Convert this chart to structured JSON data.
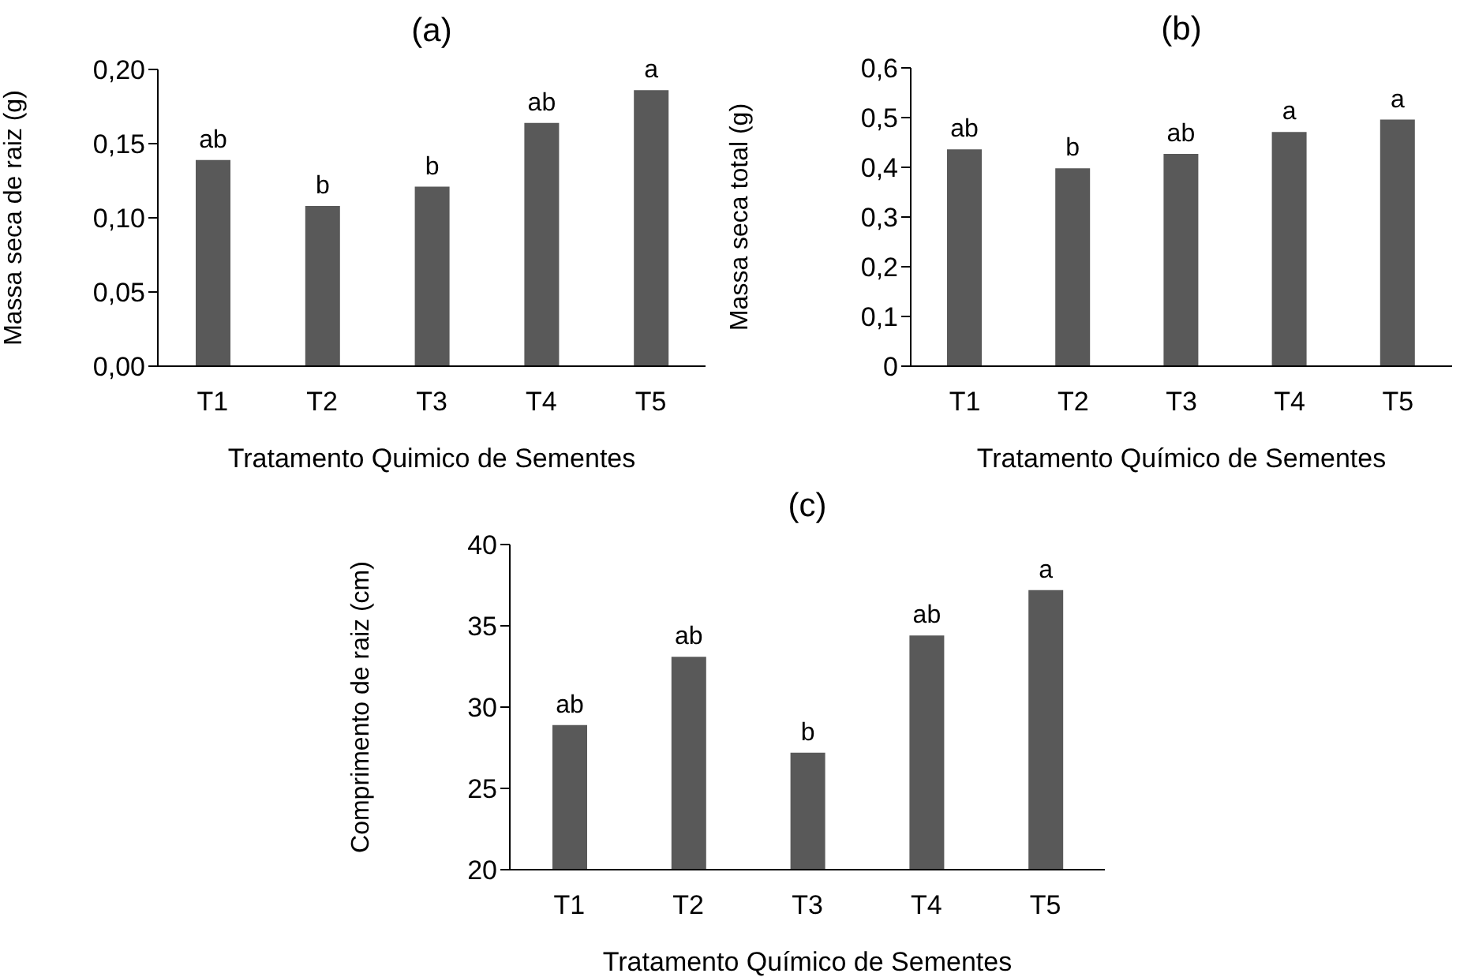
{
  "chart_data": [
    {
      "type": "bar",
      "title": "(a)",
      "xlabel": "Tratamento Quimico de Sementes",
      "ylabel": "Massa seca de raiz (g)",
      "categories": [
        "T1",
        "T2",
        "T3",
        "T4",
        "T5"
      ],
      "values": [
        0.139,
        0.108,
        0.121,
        0.164,
        0.186
      ],
      "value_labels": [
        "ab",
        "b",
        "b",
        "ab",
        "a"
      ],
      "color": "#595959",
      "ylim": [
        0,
        0.2
      ],
      "yticks": [
        {
          "value": 0,
          "label": "0,00"
        },
        {
          "value": 0.05,
          "label": "0,05"
        },
        {
          "value": 0.1,
          "label": "0,10"
        },
        {
          "value": 0.15,
          "label": "0,15"
        },
        {
          "value": 0.2,
          "label": "0,20"
        }
      ],
      "grid": false
    },
    {
      "type": "bar",
      "title": "(b)",
      "xlabel": "Tratamento Químico de Sementes",
      "ylabel": "Massa seca total (g)",
      "categories": [
        "T1",
        "T2",
        "T3",
        "T4",
        "T5"
      ],
      "values": [
        0.436,
        0.398,
        0.427,
        0.471,
        0.496
      ],
      "value_labels": [
        "ab",
        "b",
        "ab",
        "a",
        "a"
      ],
      "color": "#595959",
      "ylim": [
        0,
        0.6
      ],
      "yticks": [
        0,
        {
          "value": 0.1,
          "label": "0,1"
        },
        {
          "value": 0.2,
          "label": "0,2"
        },
        {
          "value": 0.3,
          "label": "0,3"
        },
        {
          "value": 0.4,
          "label": "0,4"
        },
        {
          "value": 0.5,
          "label": "0,5"
        },
        {
          "value": 0.6,
          "label": "0,6"
        }
      ],
      "grid": false
    },
    {
      "type": "bar",
      "title": "(c)",
      "xlabel": "Tratamento Químico de Sementes",
      "ylabel": "Comprimento de raiz (cm)",
      "categories": [
        "T1",
        "T2",
        "T3",
        "T4",
        "T5"
      ],
      "values": [
        28.9,
        33.1,
        27.2,
        34.4,
        37.2
      ],
      "value_labels": [
        "ab",
        "ab",
        "b",
        "ab",
        "a"
      ],
      "color": "#595959",
      "ylim": [
        20,
        40
      ],
      "yticks": [
        20,
        25,
        30,
        35,
        40
      ],
      "grid": false
    }
  ]
}
